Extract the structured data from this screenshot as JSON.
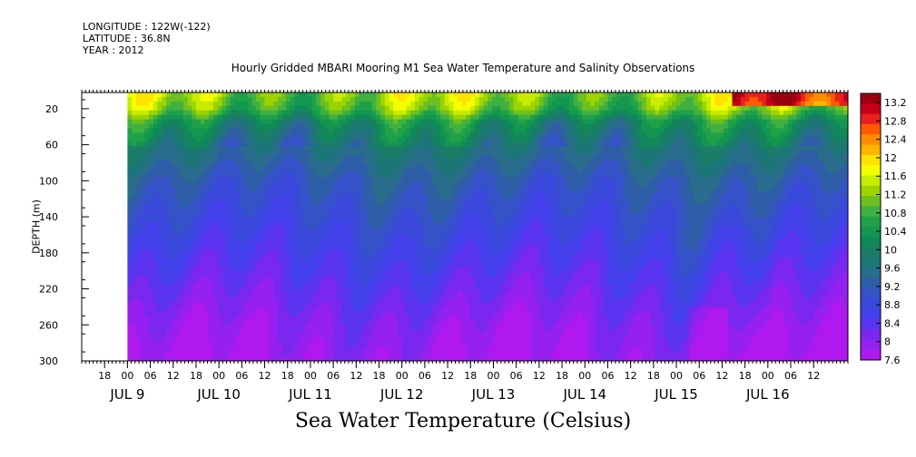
{
  "header": {
    "longitude": "LONGITUDE : 122W(-122)",
    "latitude": "LATITUDE : 36.8N",
    "year": "YEAR : 2012"
  },
  "chart_data": {
    "type": "heatmap",
    "title": "Hourly Gridded MBARI Mooring M1 Sea Water Temperature and Salinity Observations",
    "xlabel": "Sea Water Temperature (Celsius)",
    "ylabel": "DEPTH (m)",
    "y_axis": {
      "ticks": [
        20,
        60,
        100,
        140,
        180,
        220,
        260,
        300
      ],
      "range": [
        2,
        300
      ],
      "inverted": true
    },
    "x_axis": {
      "hour_ticks": [
        "18",
        "00",
        "06",
        "12",
        "18",
        "00",
        "06",
        "12",
        "18",
        "00",
        "06",
        "12",
        "18",
        "00",
        "06",
        "12",
        "18",
        "00",
        "06",
        "12",
        "18",
        "00",
        "06",
        "12",
        "18",
        "00",
        "06",
        "12",
        "18",
        "00",
        "06",
        "12"
      ],
      "day_labels": [
        "JUL  9",
        "JUL 10",
        "JUL 11",
        "JUL 12",
        "JUL 13",
        "JUL 14",
        "JUL 15",
        "JUL 16"
      ],
      "range": [
        "2012-07-08 12:00",
        "2012-07-16 21:00"
      ],
      "data_start": "2012-07-09 00:00"
    },
    "colorbar": {
      "labels": [
        "13.2",
        "12.8",
        "12.4",
        "12",
        "11.6",
        "11.2",
        "10.8",
        "10.4",
        "10",
        "9.6",
        "9.2",
        "8.8",
        "8.4",
        "8",
        "7.6"
      ],
      "colors": [
        "#9a0010",
        "#c40018",
        "#e8201c",
        "#ff5a00",
        "#ff8c00",
        "#ffb400",
        "#ffe200",
        "#f4ff00",
        "#c8ec00",
        "#9cd400",
        "#6cc020",
        "#40b040",
        "#20a048",
        "#129650",
        "#108858",
        "#1a7e66",
        "#1c7678",
        "#2a6c8c",
        "#2f5ea8",
        "#3652c8",
        "#3a48dc",
        "#4440ec",
        "#5a34f0",
        "#7a28f0",
        "#9620f0",
        "#b018f0"
      ],
      "range": [
        7.6,
        13.4
      ]
    },
    "profile": {
      "depths": [
        2,
        20,
        35,
        60,
        100,
        140,
        180,
        220,
        260,
        300
      ],
      "temperatures": [
        11.3,
        11.0,
        10.2,
        9.7,
        9.2,
        8.9,
        8.6,
        8.3,
        8.0,
        7.8
      ]
    }
  }
}
